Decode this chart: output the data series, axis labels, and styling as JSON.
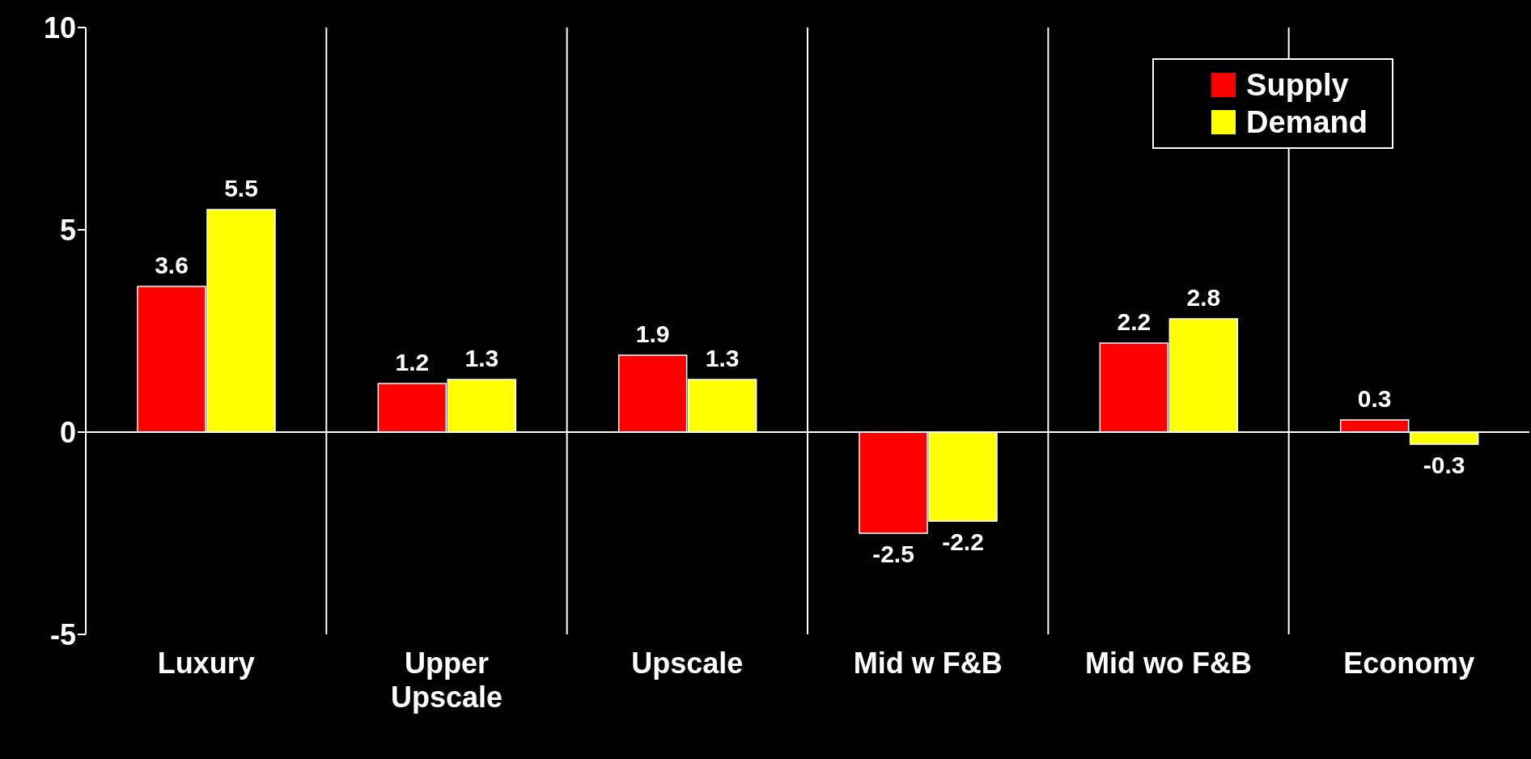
{
  "chart_data": {
    "type": "bar",
    "categories": [
      "Luxury",
      "Upper Upscale",
      "Upscale",
      "Mid w F&B",
      "Mid wo F&B",
      "Economy"
    ],
    "series": [
      {
        "name": "Supply",
        "color": "#ff0000",
        "values": [
          3.6,
          1.2,
          1.9,
          -2.5,
          2.2,
          0.3
        ]
      },
      {
        "name": "Demand",
        "color": "#ffff00",
        "values": [
          5.5,
          1.3,
          1.3,
          -2.2,
          2.8,
          -0.3
        ]
      }
    ],
    "ylim": [
      -5,
      10
    ],
    "yticks": [
      -5,
      0,
      5,
      10
    ],
    "grid": "x",
    "legend": "top right",
    "data_labels": true,
    "ref_lines": [
      {
        "axis": "y",
        "value": 0,
        "color": "#ffffff"
      }
    ]
  }
}
